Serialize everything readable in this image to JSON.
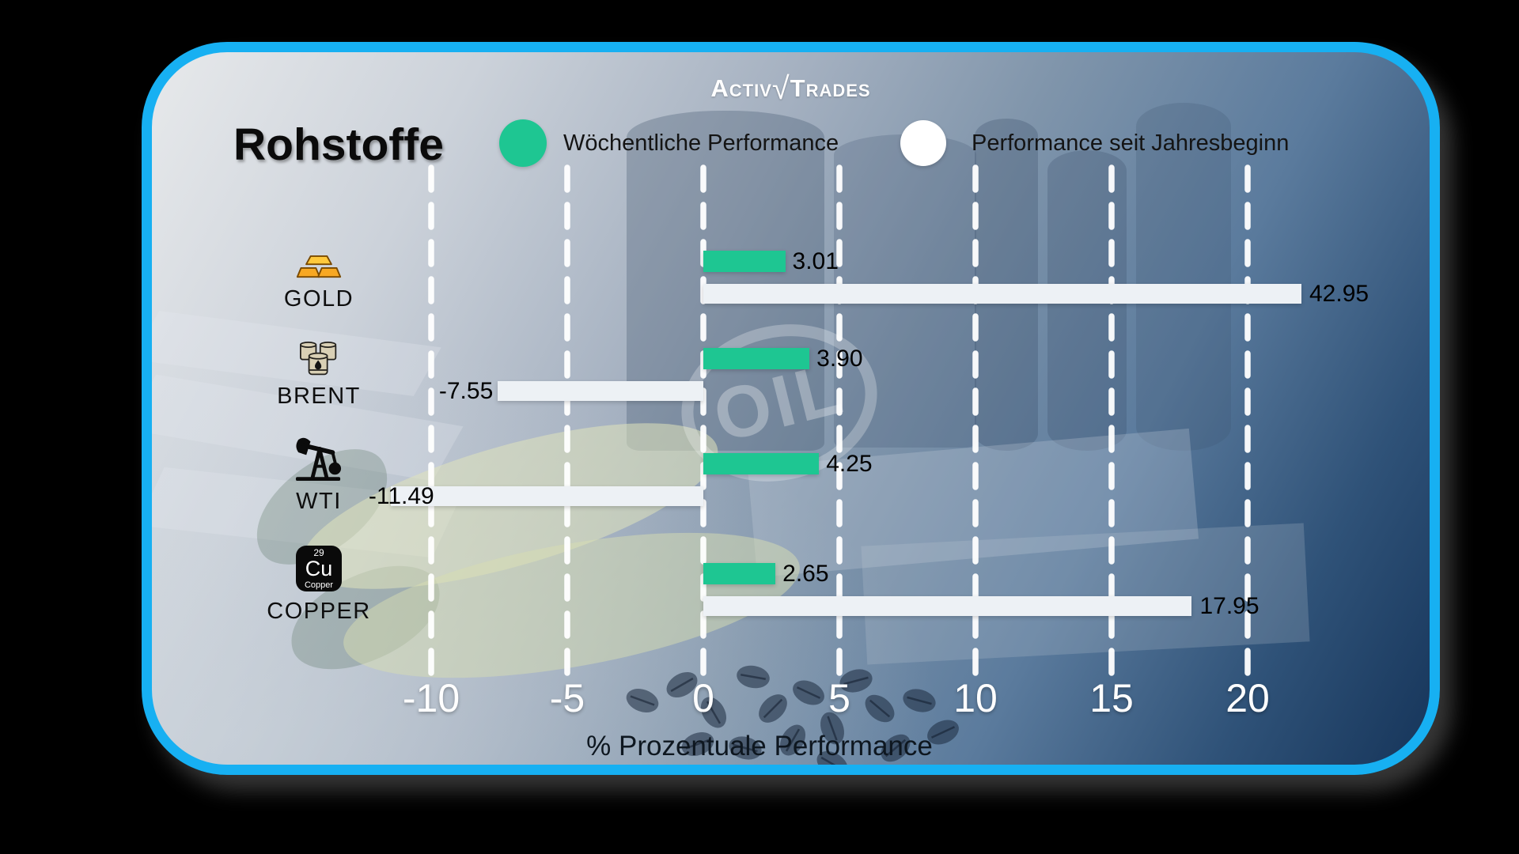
{
  "brand": {
    "name_part1": "Activ",
    "separator": "√",
    "name_part2": "Trades"
  },
  "header": {
    "title": "Rohstoffe"
  },
  "legend": [
    {
      "label": "Wöchentliche Performance",
      "color": "#1ec692"
    },
    {
      "label": "Performance seit Jahresbeginn",
      "color": "#ffffff"
    }
  ],
  "background_watermark": "OIL",
  "copper_icon": {
    "atomic_number": "29",
    "symbol": "Cu",
    "name": "Copper"
  },
  "chart_data": {
    "type": "bar",
    "orientation": "horizontal",
    "title": "Rohstoffe",
    "categories": [
      "GOLD",
      "BRENT",
      "WTI",
      "COPPER"
    ],
    "category_icons": [
      "gold-bars-icon",
      "oil-barrels-icon",
      "oil-pump-icon",
      "copper-element-icon"
    ],
    "series": [
      {
        "name": "Wöchentliche Performance",
        "color": "#1ec692",
        "values": [
          3.01,
          3.9,
          4.25,
          2.65
        ]
      },
      {
        "name": "Performance seit Jahresbeginn",
        "color": "#edf1f5",
        "values": [
          42.95,
          -7.55,
          -11.49,
          17.95
        ]
      }
    ],
    "value_labels": [
      [
        "3.01",
        "3.90",
        "4.25",
        "2.65"
      ],
      [
        "42.95",
        "-7.55",
        "-11.49",
        "17.95"
      ]
    ],
    "x_ticks": [
      -10,
      -5,
      0,
      5,
      10,
      15,
      20
    ],
    "x_tick_labels": [
      "-10",
      "-5",
      "0",
      "5",
      "10",
      "15",
      "20"
    ],
    "xlabel": "% Prozentuale Performance",
    "xlim": [
      -14.7,
      22
    ],
    "grid": "dashed-vertical-white",
    "legend_position": "top"
  }
}
